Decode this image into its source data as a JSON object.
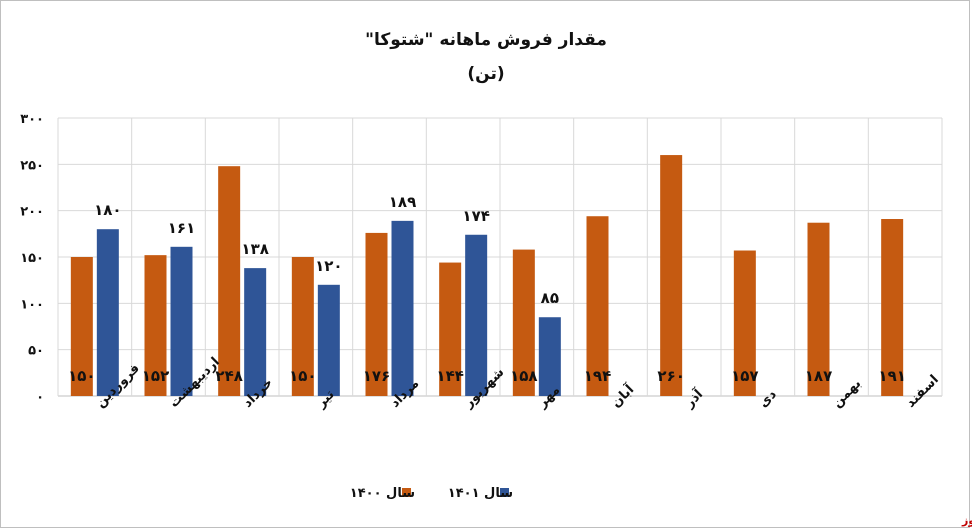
{
  "chart_data": {
    "type": "bar",
    "title": "مقدار فروش ماهانه \"شتوکا\"",
    "subtitle": "(تن)",
    "categories": [
      "فروردین",
      "اردیبهشت",
      "خرداد",
      "تیر",
      "مرداد",
      "شهریور",
      "مهر",
      "آبان",
      "آذر",
      "دی",
      "بهمن",
      "اسفند"
    ],
    "series": [
      {
        "name": "سال ۱۴۰۰",
        "color": "#c55a11",
        "values": [
          150,
          152,
          248,
          150,
          176,
          144,
          158,
          194,
          260,
          157,
          187,
          191
        ],
        "labels": [
          "۱۵۰",
          "۱۵۲",
          "۲۴۸",
          "۱۵۰",
          "۱۷۶",
          "۱۴۴",
          "۱۵۸",
          "۱۹۴",
          "۲۶۰",
          "۱۵۷",
          "۱۸۷",
          "۱۹۱"
        ]
      },
      {
        "name": "سال ۱۴۰۱",
        "color": "#2f5597",
        "values": [
          180,
          161,
          138,
          120,
          189,
          174,
          85,
          null,
          null,
          null,
          null,
          null
        ],
        "labels": [
          "۱۸۰",
          "۱۶۱",
          "۱۳۸",
          "۱۲۰",
          "۱۸۹",
          "۱۷۴",
          "۸۵",
          "",
          "",
          "",
          "",
          ""
        ]
      }
    ],
    "ylim": [
      0,
      300
    ],
    "yticks": [
      0,
      50,
      100,
      150,
      200,
      250,
      300
    ],
    "ytick_labels": [
      "۰",
      "۵۰",
      "۱۰۰",
      "۱۵۰",
      "۲۰۰",
      "۲۵۰",
      "۳۰۰"
    ],
    "grid": true,
    "legend": "bottom",
    "source": "بورس نیوز"
  }
}
